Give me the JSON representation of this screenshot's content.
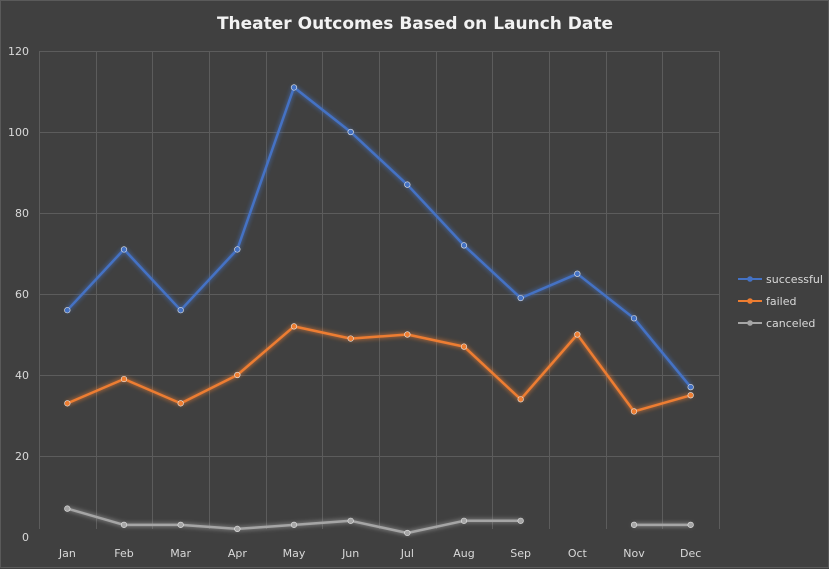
{
  "chart_data": {
    "type": "line",
    "title": "Theater Outcomes Based on Launch Date",
    "xlabel": "",
    "ylabel": "",
    "categories": [
      "Jan",
      "Feb",
      "Mar",
      "Apr",
      "May",
      "Jun",
      "Jul",
      "Aug",
      "Sep",
      "Oct",
      "Nov",
      "Dec"
    ],
    "ylim": [
      0,
      120
    ],
    "yticks": [
      0,
      20,
      40,
      60,
      80,
      100,
      120
    ],
    "grid": true,
    "legend_position": "right",
    "series": [
      {
        "name": "successful",
        "color": "#4472c4",
        "values": [
          56,
          71,
          56,
          71,
          111,
          100,
          87,
          72,
          59,
          65,
          54,
          37
        ]
      },
      {
        "name": "failed",
        "color": "#ed7d31",
        "values": [
          33,
          39,
          33,
          40,
          52,
          49,
          50,
          47,
          34,
          50,
          31,
          35
        ]
      },
      {
        "name": "canceled",
        "color": "#a5a5a5",
        "values": [
          7,
          3,
          3,
          2,
          3,
          4,
          1,
          4,
          4,
          null,
          3,
          3
        ]
      }
    ]
  }
}
